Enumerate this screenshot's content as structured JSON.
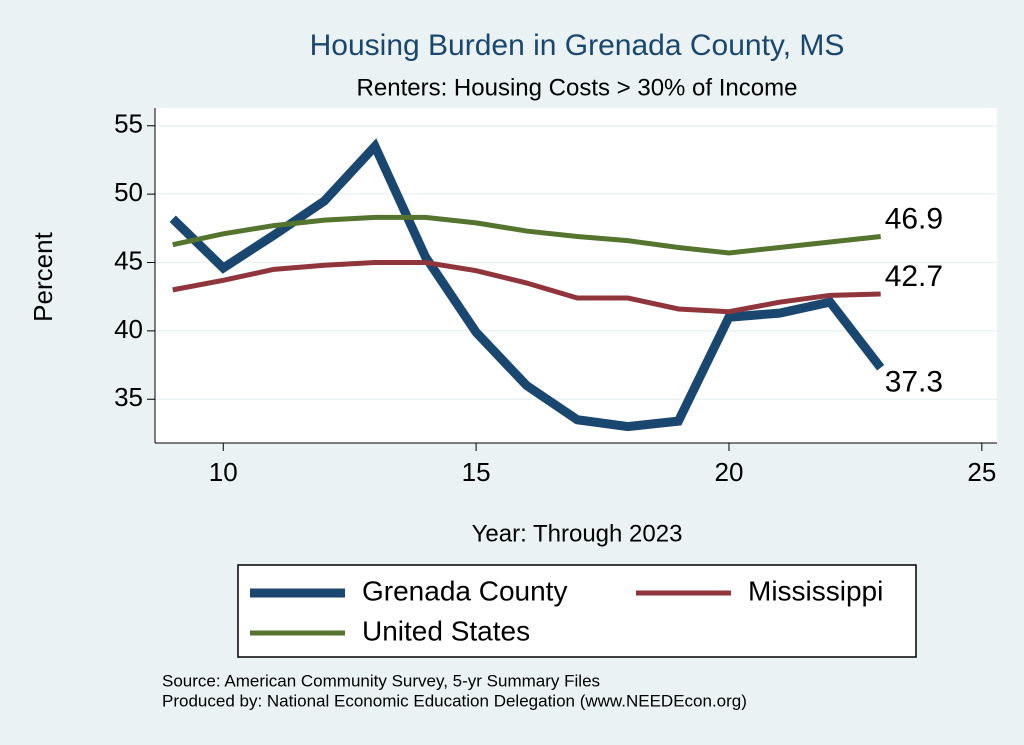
{
  "chart_data": {
    "type": "line",
    "title": "Housing Burden in Grenada County, MS",
    "subtitle": "Renters: Housing Costs > 30% of Income",
    "y_label": "Percent",
    "x_label": "Year: Through 2023",
    "notes": [
      "Source: American Community Survey, 5-yr Summary Files",
      "Produced by: National Economic Education Delegation (www.NEEDEcon.org)"
    ],
    "x": [
      9,
      10,
      11,
      12,
      13,
      14,
      15,
      16,
      17,
      18,
      19,
      20,
      21,
      22,
      23
    ],
    "series": [
      {
        "name": "Grenada County",
        "color": "#1a476f",
        "values": [
          48.2,
          44.6,
          47.0,
          49.5,
          53.5,
          45.4,
          39.9,
          36.0,
          33.5,
          33.0,
          33.4,
          41.0,
          41.3,
          42.1,
          37.3
        ]
      },
      {
        "name": "Mississippi",
        "color": "#90353b",
        "values": [
          43.0,
          43.7,
          44.5,
          44.8,
          45.0,
          45.0,
          44.4,
          43.5,
          42.4,
          42.4,
          41.6,
          41.4,
          42.1,
          42.6,
          42.7
        ]
      },
      {
        "name": "United States",
        "color": "#55752f",
        "values": [
          46.3,
          47.1,
          47.7,
          48.1,
          48.3,
          48.3,
          47.9,
          47.3,
          46.9,
          46.6,
          46.1,
          45.7,
          46.1,
          46.5,
          46.9
        ]
      }
    ],
    "xlim": [
      8.65,
      25.3
    ],
    "xticks": [
      10,
      15,
      20,
      25
    ],
    "ylim": [
      31.8,
      56.3
    ],
    "yticks": [
      35,
      40,
      45,
      50,
      55
    ],
    "grid": true,
    "legend": "bottom",
    "end_labels": true
  }
}
